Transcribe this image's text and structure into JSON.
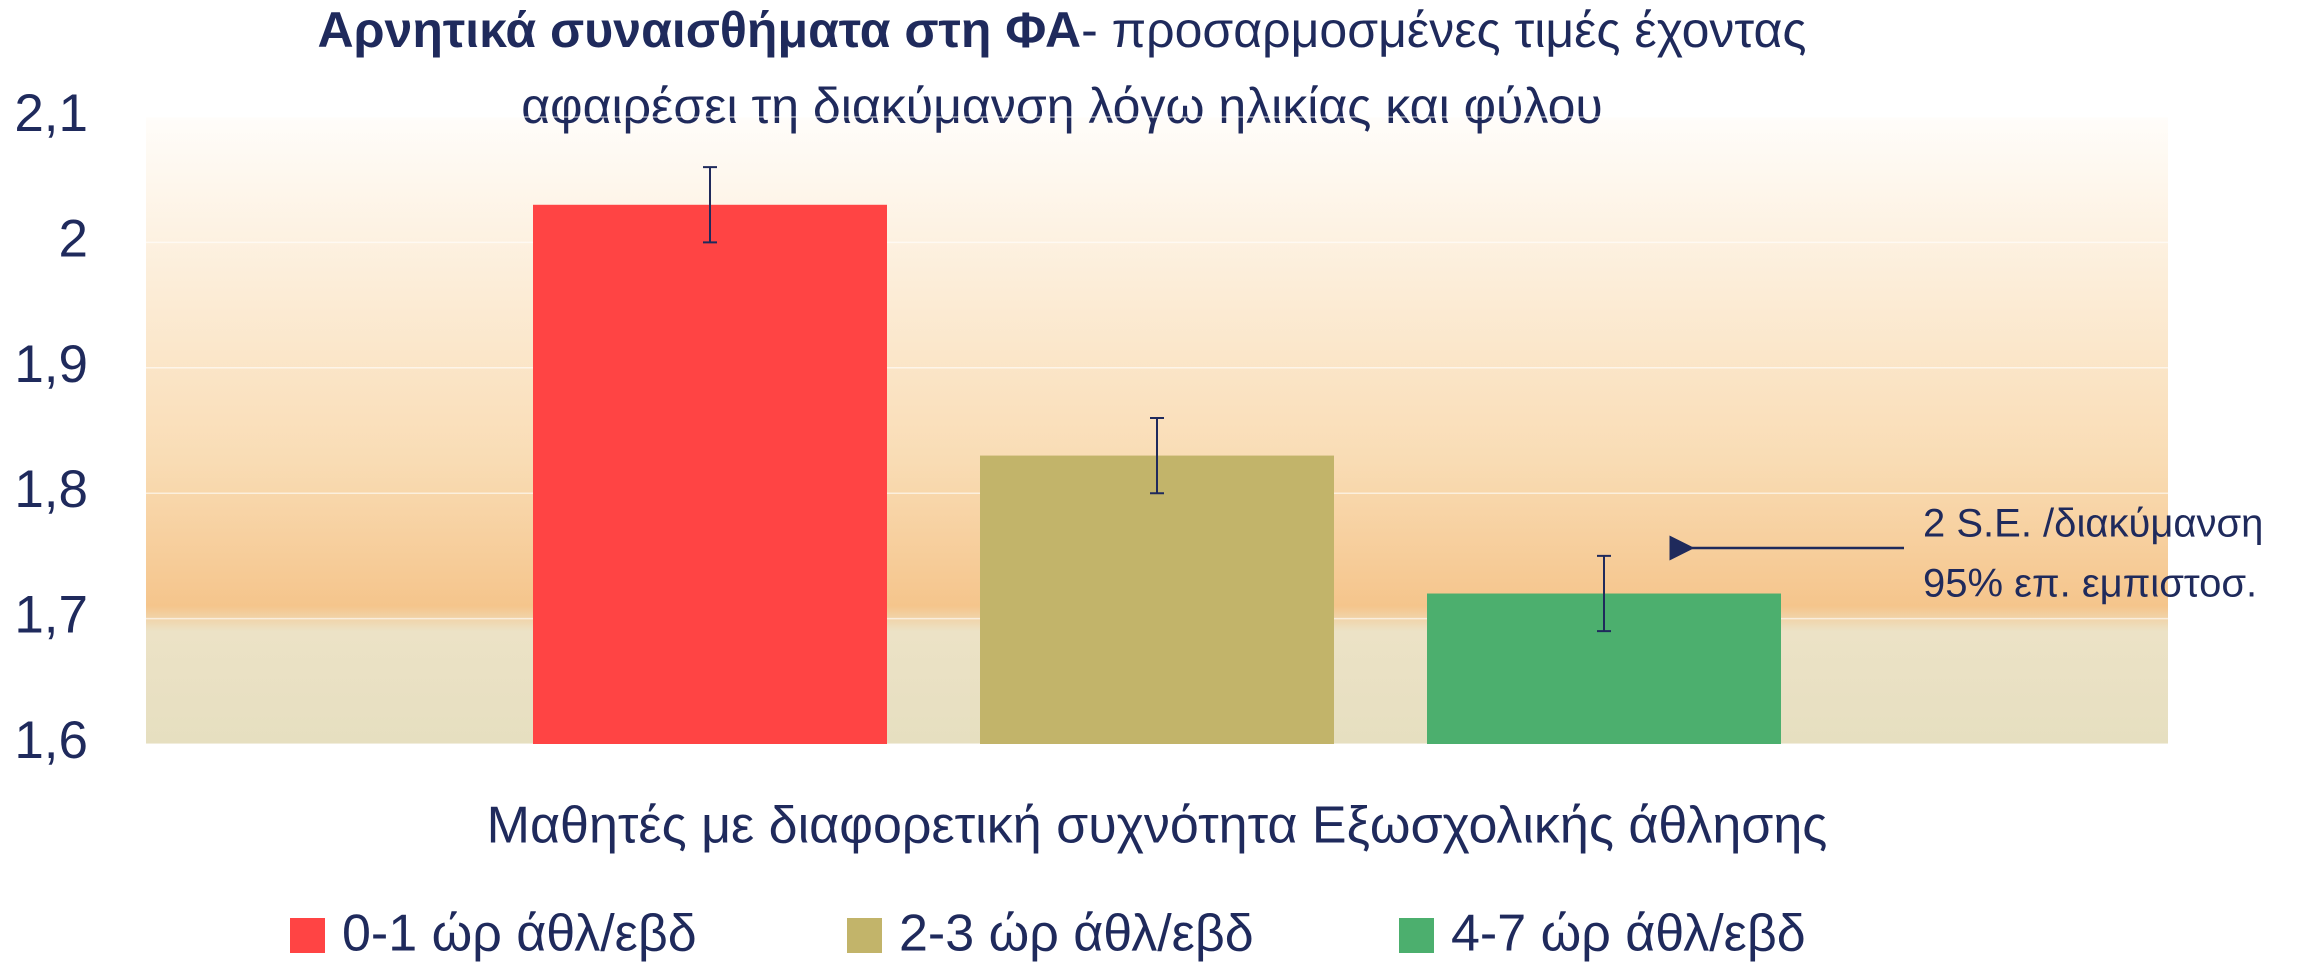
{
  "chart_data": {
    "type": "bar",
    "title": "Αρνητικά συναισθήματα στη ΦΑ",
    "subtitle": [
      "- προσαρμοσμένες τιμές έχοντας",
      "αφαιρέσει τη διακύμανση λόγω ηλικίας και φύλου"
    ],
    "x_label": "Μαθητές με διαφορετική συχνότητα Εξωσχολικής άθλησης",
    "categories": [
      null
    ],
    "series": [
      {
        "name": "0-1 ώρ άθλ/εβδ",
        "color": "#ff4444",
        "values": [
          2.03
        ],
        "errors": [
          0.03
        ]
      },
      {
        "name": "2-3 ώρ άθλ/εβδ",
        "color": "#c2b46a",
        "values": [
          1.83
        ],
        "errors": [
          0.03
        ]
      },
      {
        "name": "4-7 ώρ άθλ/εβδ",
        "color": "#4caf6e",
        "values": [
          1.72
        ],
        "errors": [
          0.03
        ]
      }
    ],
    "ylim": [
      1.6,
      2.1
    ],
    "yticks": [
      {
        "value": 1.6,
        "label": "1,6"
      },
      {
        "value": 1.7,
        "label": "1,7"
      },
      {
        "value": 1.8,
        "label": "1,8"
      },
      {
        "value": 1.9,
        "label": "1,9"
      },
      2,
      {
        "value": 2.1,
        "label": "2,1"
      }
    ],
    "grid": true,
    "legend": "bottom",
    "annotation": [
      "2 S.E. /διακύμανση",
      "95% επ. εμπιστοσ."
    ]
  }
}
